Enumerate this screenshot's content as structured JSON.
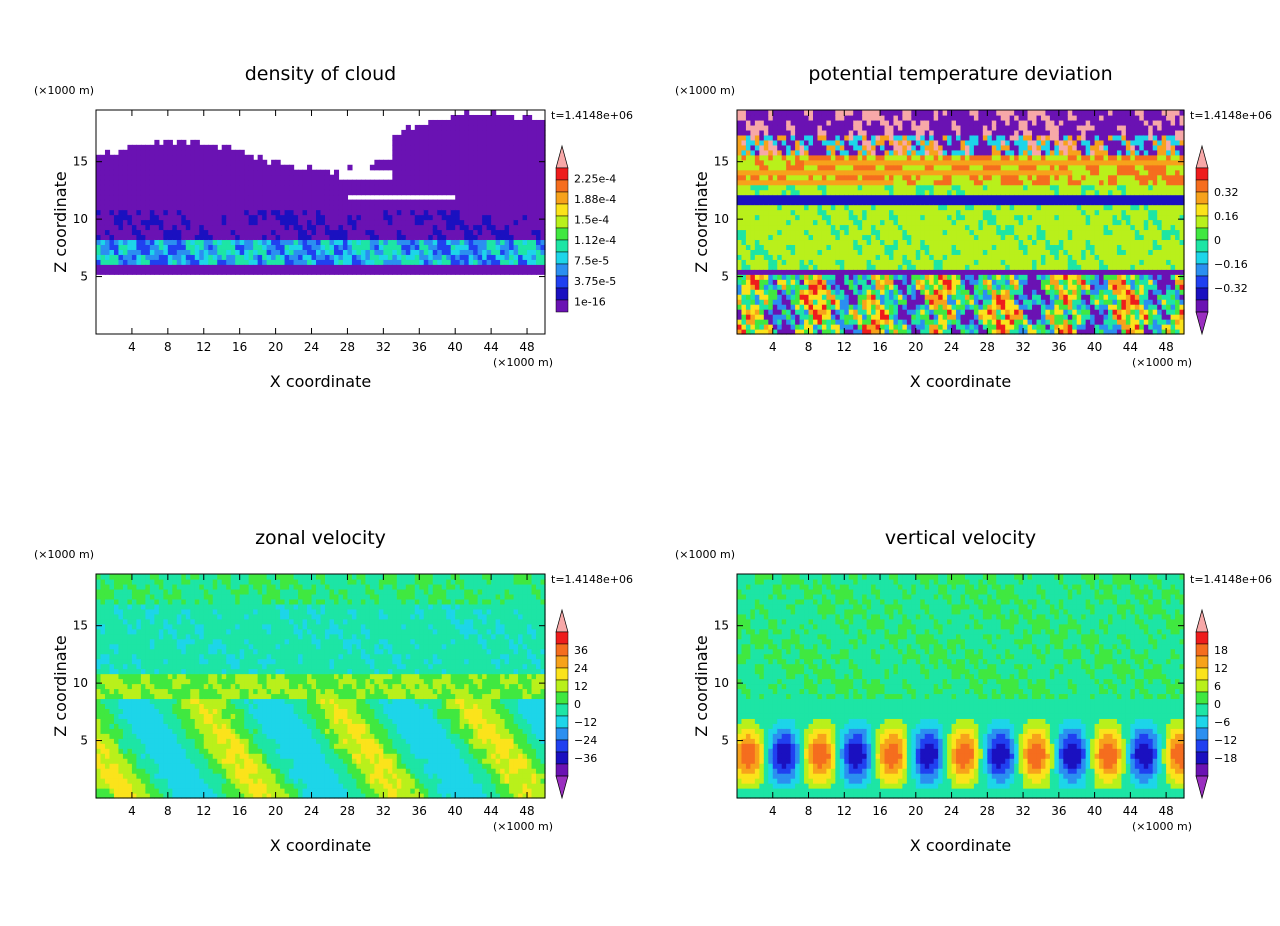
{
  "chart_data": [
    {
      "type": "heatmap",
      "title": "density of cloud",
      "xlabel": "X coordinate",
      "ylabel": "Z coordinate",
      "x_unit": "(×1000 m)",
      "y_unit": "(×1000 m)",
      "time_label": "t=1.4148e+06",
      "xlim": [
        0,
        50
      ],
      "ylim": [
        0,
        19.5
      ],
      "xticks": [
        4,
        8,
        12,
        16,
        20,
        24,
        28,
        32,
        36,
        40,
        44,
        48
      ],
      "yticks": [
        5,
        10,
        15
      ],
      "colorbar_ticks": [
        "2.25e-4",
        "1.88e-4",
        "1.5e-4",
        "1.12e-4",
        "7.5e-5",
        "3.75e-5",
        "1e-16"
      ],
      "colorbar_colors": [
        "#f7a8a8",
        "#ee1c1c",
        "#f56d1e",
        "#f7a21b",
        "#fbe31b",
        "#b9f01b",
        "#40e840",
        "#1de5a5",
        "#1dd5e9",
        "#2b8ff0",
        "#2040f0",
        "#1a10c0",
        "#6a12b3"
      ],
      "colorbar_extend": "max",
      "field_model": "cloud"
    },
    {
      "type": "heatmap",
      "title": "potential temperature deviation",
      "xlabel": "X coordinate",
      "ylabel": "Z coordinate",
      "x_unit": "(×1000 m)",
      "y_unit": "(×1000 m)",
      "time_label": "t=1.4148e+06",
      "xlim": [
        0,
        50
      ],
      "ylim": [
        0,
        19.5
      ],
      "xticks": [
        4,
        8,
        12,
        16,
        20,
        24,
        28,
        32,
        36,
        40,
        44,
        48
      ],
      "yticks": [
        5,
        10,
        15
      ],
      "colorbar_ticks": [
        "0.32",
        "0.16",
        "0",
        "−0.16",
        "−0.32"
      ],
      "colorbar_colors": [
        "#f7a8a8",
        "#ee1c1c",
        "#f56d1e",
        "#f7a21b",
        "#fbe31b",
        "#b9f01b",
        "#40e840",
        "#1de5a5",
        "#1dd5e9",
        "#2b8ff0",
        "#2040f0",
        "#1a10c0",
        "#6a12b3",
        "#9a2fc0"
      ],
      "colorbar_extend": "both",
      "field_model": "theta"
    },
    {
      "type": "heatmap",
      "title": "zonal velocity",
      "xlabel": "X coordinate",
      "ylabel": "Z coordinate",
      "x_unit": "(×1000 m)",
      "y_unit": "(×1000 m)",
      "time_label": "t=1.4148e+06",
      "xlim": [
        0,
        50
      ],
      "ylim": [
        0,
        19.5
      ],
      "xticks": [
        4,
        8,
        12,
        16,
        20,
        24,
        28,
        32,
        36,
        40,
        44,
        48
      ],
      "yticks": [
        5,
        10,
        15
      ],
      "colorbar_ticks": [
        "36",
        "24",
        "12",
        "0",
        "−12",
        "−24",
        "−36"
      ],
      "colorbar_colors": [
        "#f7a8a8",
        "#ee1c1c",
        "#f56d1e",
        "#f7a21b",
        "#fbe31b",
        "#b9f01b",
        "#40e840",
        "#1de5a5",
        "#1dd5e9",
        "#2b8ff0",
        "#2040f0",
        "#1a10c0",
        "#6a12b3",
        "#9a2fc0"
      ],
      "colorbar_extend": "both",
      "field_model": "u"
    },
    {
      "type": "heatmap",
      "title": "vertical velocity",
      "xlabel": "X coordinate",
      "ylabel": "Z coordinate",
      "x_unit": "(×1000 m)",
      "y_unit": "(×1000 m)",
      "time_label": "t=1.4148e+06",
      "xlim": [
        0,
        50
      ],
      "ylim": [
        0,
        19.5
      ],
      "xticks": [
        4,
        8,
        12,
        16,
        20,
        24,
        28,
        32,
        36,
        40,
        44,
        48
      ],
      "yticks": [
        5,
        10,
        15
      ],
      "colorbar_ticks": [
        "18",
        "12",
        "6",
        "0",
        "−6",
        "−12",
        "−18"
      ],
      "colorbar_colors": [
        "#f7a8a8",
        "#ee1c1c",
        "#f56d1e",
        "#f7a21b",
        "#fbe31b",
        "#b9f01b",
        "#40e840",
        "#1de5a5",
        "#1dd5e9",
        "#2b8ff0",
        "#2040f0",
        "#1a10c0",
        "#6a12b3",
        "#9a2fc0"
      ],
      "colorbar_extend": "both",
      "field_model": "w"
    }
  ]
}
